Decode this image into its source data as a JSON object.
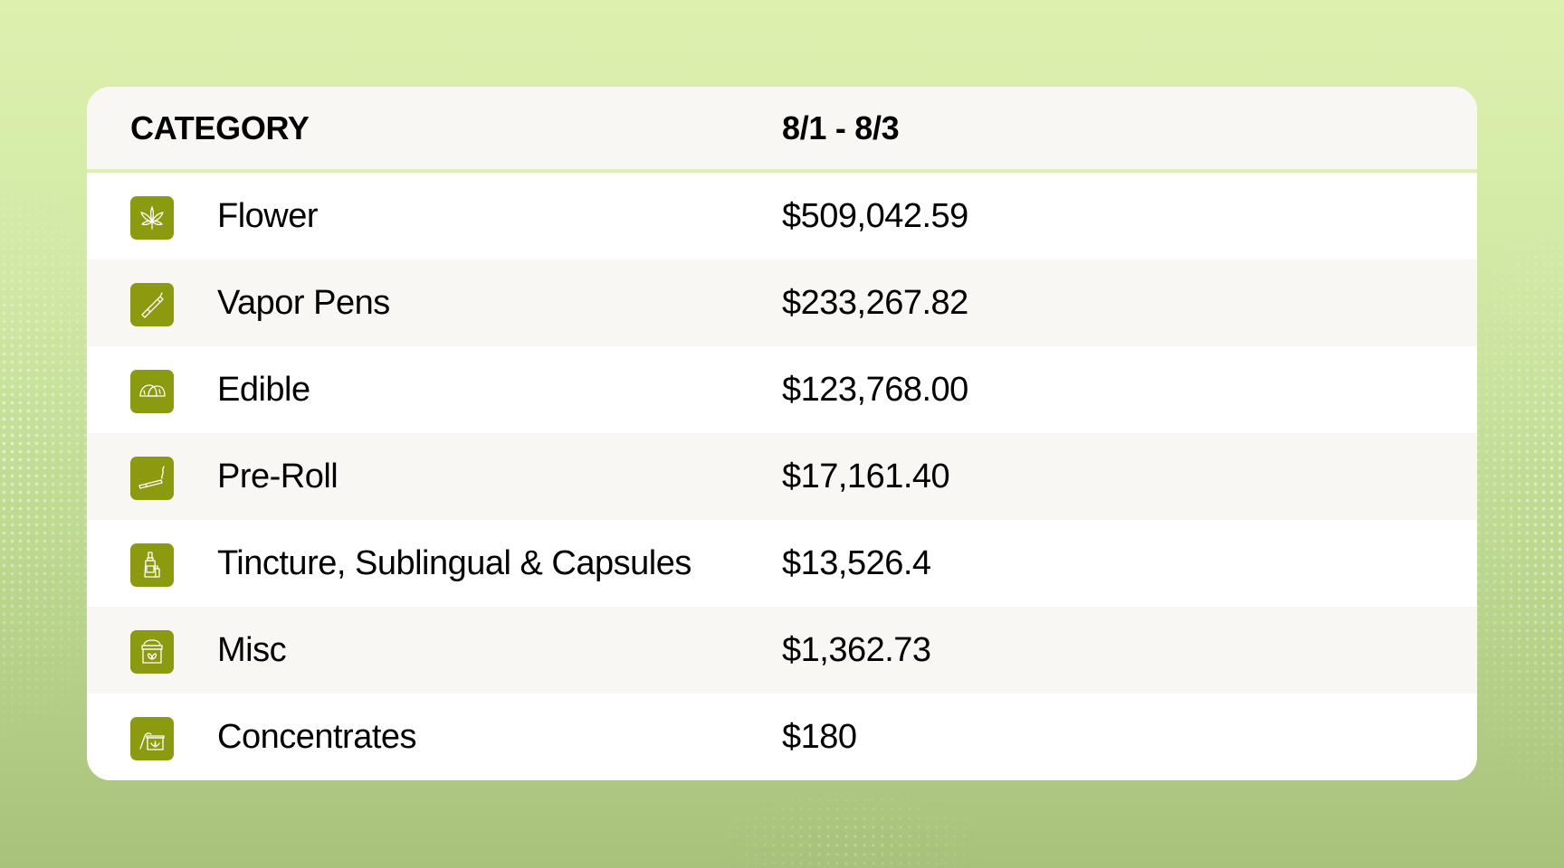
{
  "table": {
    "headers": {
      "category": "CATEGORY",
      "date_range": "8/1 - 8/3"
    },
    "rows": [
      {
        "icon": "cannabis-leaf-icon",
        "category": "Flower",
        "value": "$509,042.59"
      },
      {
        "icon": "vape-pen-icon",
        "category": "Vapor Pens",
        "value": "$233,267.82"
      },
      {
        "icon": "gummy-icon",
        "category": "Edible",
        "value": "$123,768.00"
      },
      {
        "icon": "pre-roll-icon",
        "category": "Pre-Roll",
        "value": "$17,161.40"
      },
      {
        "icon": "tincture-bottle-icon",
        "category": "Tincture, Sublingual & Capsules",
        "value": "$13,526.4"
      },
      {
        "icon": "cream-jar-icon",
        "category": "Misc",
        "value": "$1,362.73"
      },
      {
        "icon": "concentrate-jar-icon",
        "category": "Concentrates",
        "value": "$180"
      }
    ]
  },
  "colors": {
    "icon_background": "#8b9a0e",
    "header_background": "#f8f7f4",
    "header_divider": "#d9f0ae",
    "page_background_top": "#ddf1af",
    "page_background_bottom": "#a9c27b"
  }
}
